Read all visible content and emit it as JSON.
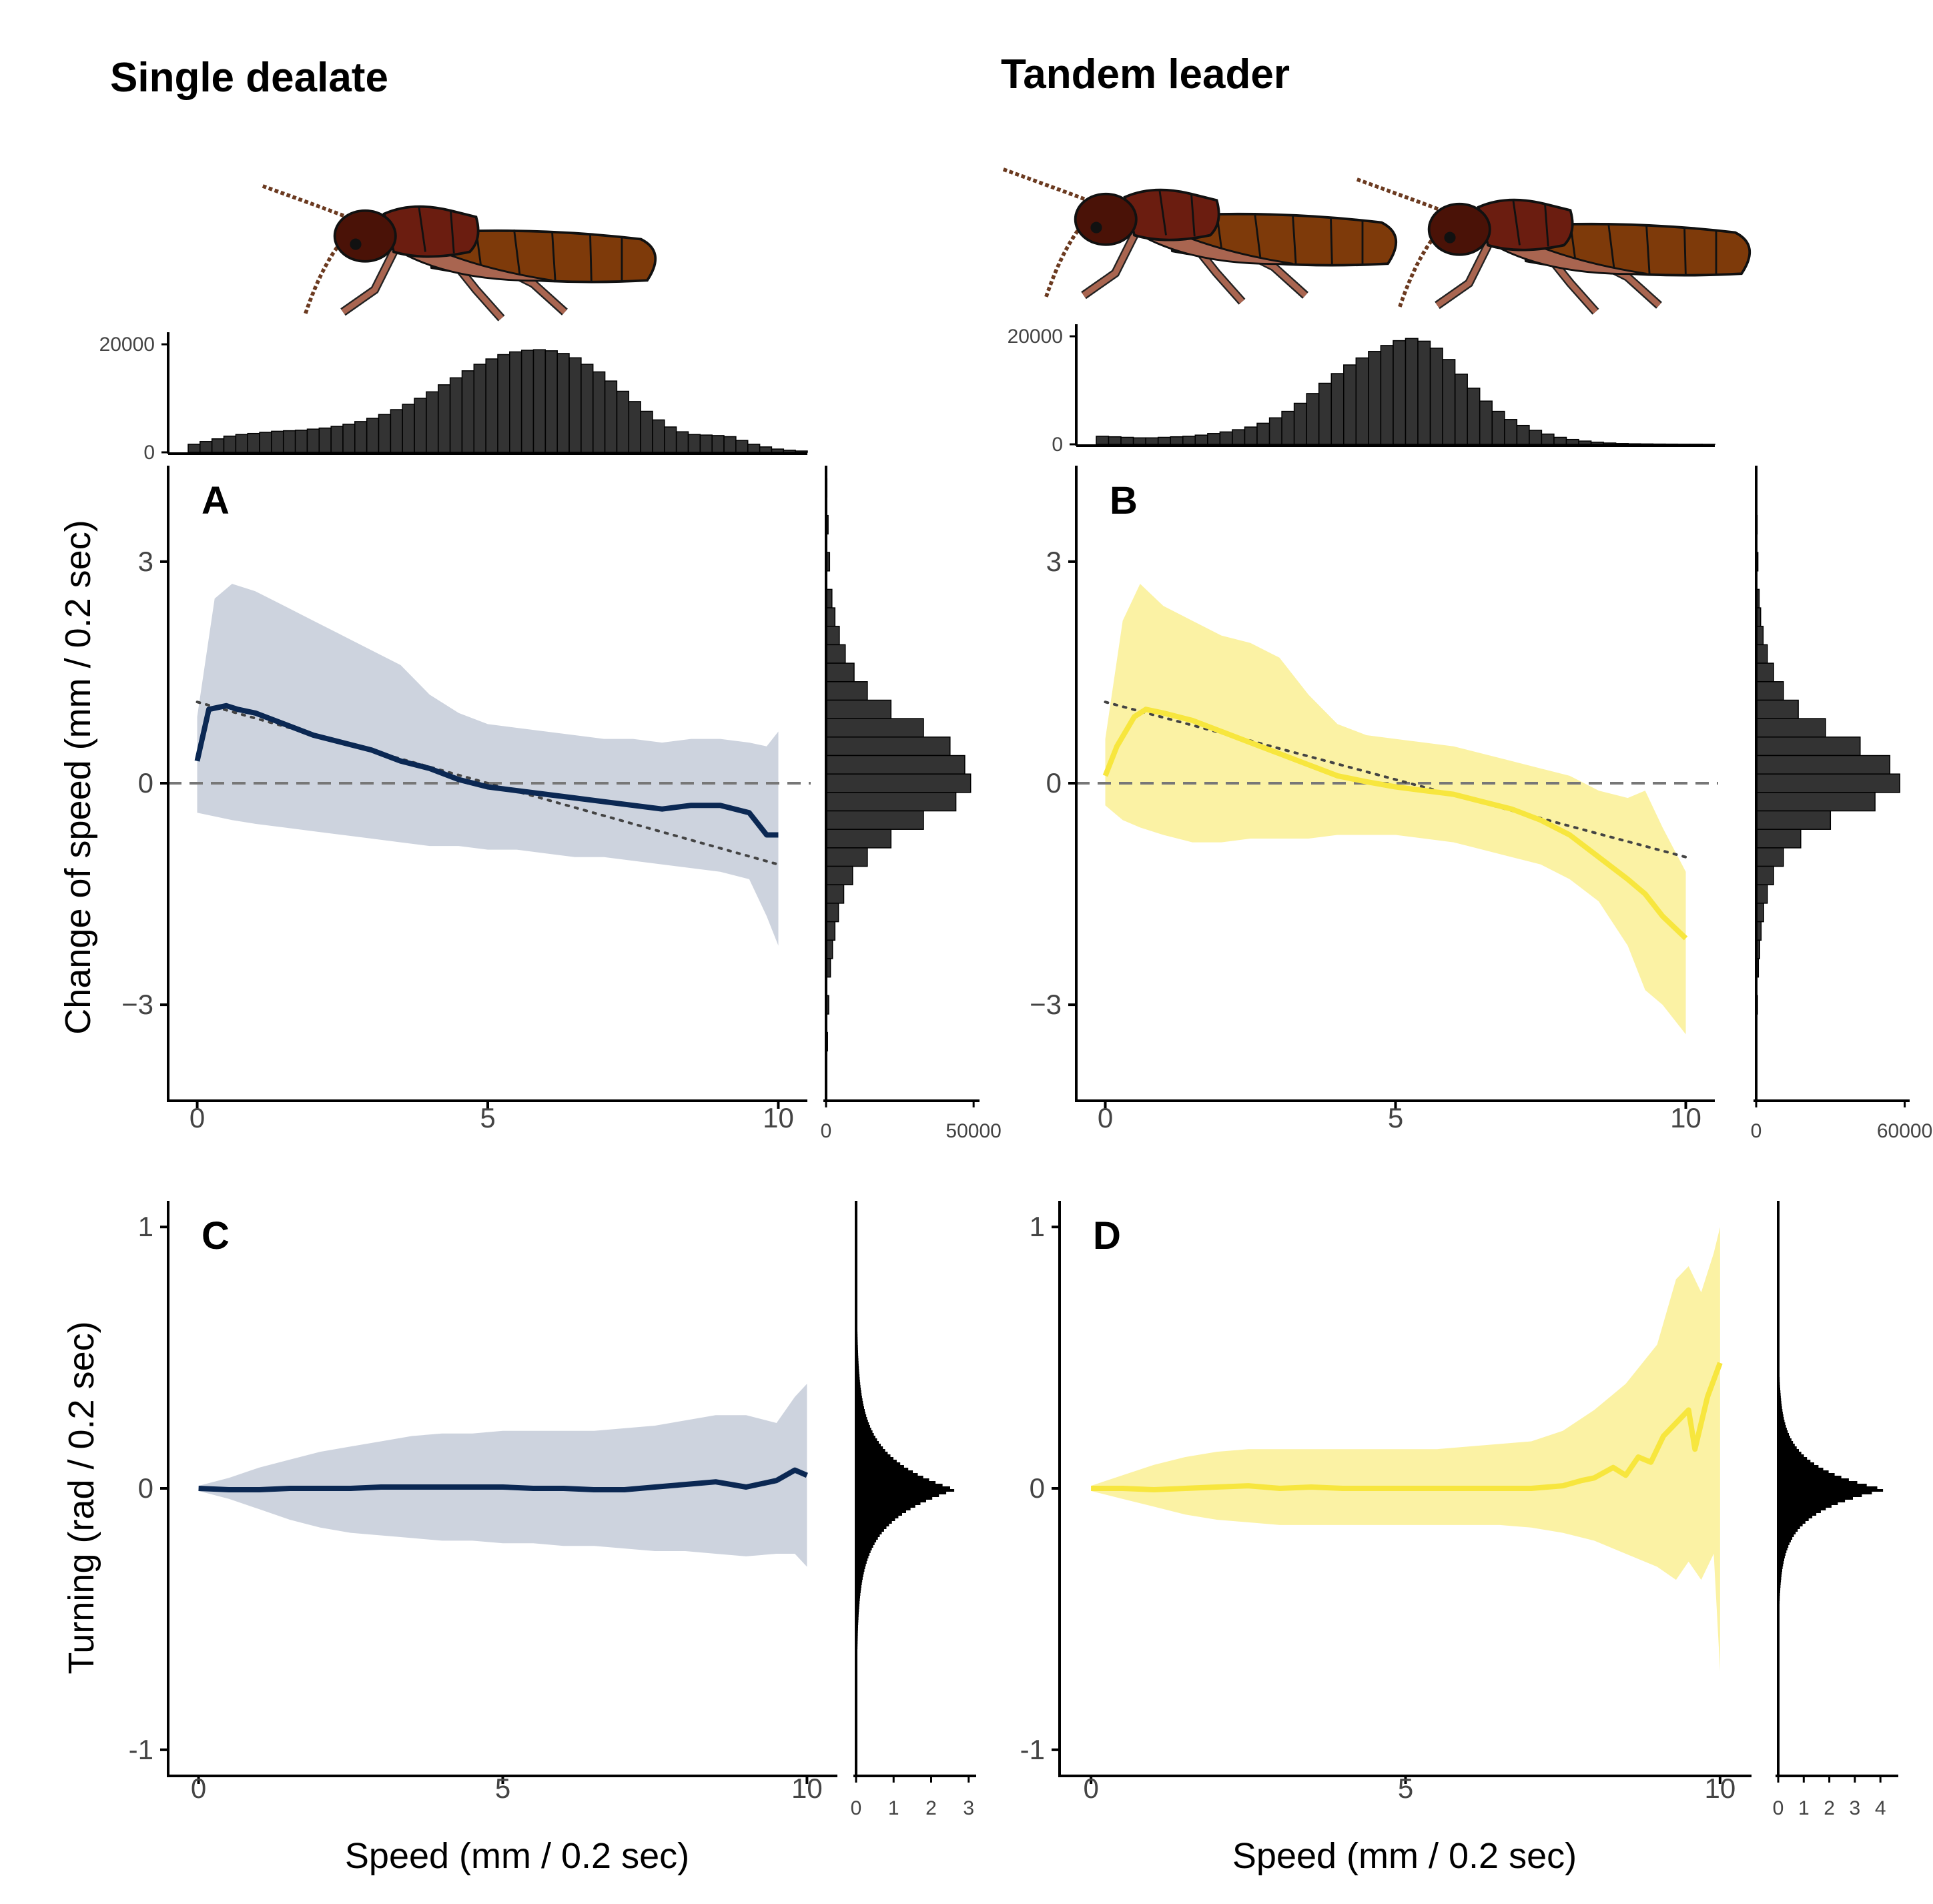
{
  "columns": [
    {
      "title": "Single dealate"
    },
    {
      "title": "Tandem leader"
    }
  ],
  "axis_labels": {
    "change_of_speed": "Change of speed (mm / 0.2 sec)",
    "turning": "Turning (rad / 0.2 sec)",
    "speed": "Speed (mm / 0.2 sec)"
  },
  "colors": {
    "single_line": "#0b2853",
    "single_band": "#cdd3de",
    "tandem_line": "#f7e63e",
    "tandem_band": "#fbf2a4",
    "histogram_fill": "#333333",
    "reference_line": "#777777",
    "linear_fit": "#444444",
    "termite_head": "#4a1207",
    "termite_thorax": "#6b1d10",
    "termite_abdomen": "#7e3a0a",
    "termite_legs": "#a96550"
  },
  "illustrations": [
    {
      "name": "termite-single",
      "icon": "termite-icon"
    },
    {
      "name": "termite-tandem-pair",
      "icon": "termite-pair-icon"
    }
  ],
  "chart_data": [
    {
      "type": "line",
      "panel_label": "A",
      "xlabel": "",
      "ylabel": "Change of speed (mm / 0.2 sec)",
      "xlim": [
        -0.5,
        10.5
      ],
      "ylim": [
        -4.3,
        4.3
      ],
      "xticks": [
        "0",
        "5",
        "10"
      ],
      "yticks": [
        "−3",
        "0",
        "3"
      ],
      "reference_line_y": 0,
      "mean": {
        "x": [
          0,
          0.2,
          0.5,
          0.7,
          1,
          1.5,
          2,
          2.5,
          3,
          3.5,
          4,
          4.5,
          5,
          5.5,
          6,
          6.5,
          7,
          7.5,
          8,
          8.5,
          9,
          9.5,
          9.8,
          10
        ],
        "y": [
          0.3,
          1.0,
          1.05,
          1.0,
          0.95,
          0.8,
          0.65,
          0.55,
          0.45,
          0.3,
          0.2,
          0.05,
          -0.05,
          -0.1,
          -0.15,
          -0.2,
          -0.25,
          -0.3,
          -0.35,
          -0.3,
          -0.3,
          -0.4,
          -0.7,
          -0.7
        ]
      },
      "band": {
        "x": [
          0,
          0.3,
          0.6,
          1,
          1.5,
          2,
          2.5,
          3,
          3.5,
          4,
          4.5,
          5,
          5.5,
          6,
          6.5,
          7,
          7.5,
          8,
          8.5,
          9,
          9.5,
          9.8,
          10
        ],
        "upper": [
          0.9,
          2.5,
          2.7,
          2.6,
          2.4,
          2.2,
          2.0,
          1.8,
          1.6,
          1.2,
          0.95,
          0.8,
          0.75,
          0.7,
          0.65,
          0.6,
          0.6,
          0.55,
          0.6,
          0.6,
          0.55,
          0.5,
          0.7
        ],
        "lower": [
          -0.4,
          -0.45,
          -0.5,
          -0.55,
          -0.6,
          -0.65,
          -0.7,
          -0.75,
          -0.8,
          -0.85,
          -0.85,
          -0.9,
          -0.9,
          -0.95,
          -1.0,
          -1.0,
          -1.05,
          -1.1,
          -1.15,
          -1.2,
          -1.3,
          -1.8,
          -2.2
        ]
      },
      "linear_fit": {
        "x": [
          0,
          10
        ],
        "y": [
          1.1,
          -1.1
        ]
      },
      "top_histogram": {
        "tick_labels": [
          "0",
          "20000"
        ],
        "max": 21000,
        "counts": [
          1500,
          2000,
          2500,
          3000,
          3300,
          3500,
          3700,
          3900,
          4000,
          4100,
          4300,
          4500,
          4800,
          5200,
          5700,
          6300,
          7000,
          7900,
          8900,
          10000,
          11200,
          12500,
          13800,
          15100,
          16300,
          17300,
          18100,
          18600,
          18900,
          19000,
          18800,
          18300,
          17500,
          16300,
          14900,
          13200,
          11300,
          9400,
          7600,
          6000,
          4700,
          3800,
          3300,
          3200,
          3100,
          2900,
          2200,
          1500,
          1000,
          600,
          400,
          250
        ]
      },
      "side_histogram": {
        "tick_labels": [
          "0",
          "50000"
        ],
        "max": 52000,
        "bin_centers": [
          4.0,
          3.5,
          3.0,
          2.5,
          2.25,
          2.0,
          1.75,
          1.5,
          1.25,
          1.0,
          0.75,
          0.5,
          0.25,
          0.0,
          -0.25,
          -0.5,
          -0.75,
          -1.0,
          -1.25,
          -1.5,
          -1.75,
          -2.0,
          -2.25,
          -2.5,
          -3.0,
          -3.5,
          -4.0
        ],
        "counts": [
          300,
          700,
          1200,
          2000,
          3000,
          4500,
          6500,
          9500,
          14000,
          22000,
          33000,
          42000,
          47000,
          49000,
          44000,
          33000,
          22000,
          14000,
          9000,
          6000,
          4200,
          3000,
          2200,
          1500,
          900,
          500,
          250
        ]
      }
    },
    {
      "type": "line",
      "panel_label": "B",
      "xlabel": "",
      "ylabel": "",
      "xlim": [
        -0.5,
        10.5
      ],
      "ylim": [
        -4.3,
        4.3
      ],
      "xticks": [
        "0",
        "5",
        "10"
      ],
      "yticks": [
        "−3",
        "0",
        "3"
      ],
      "reference_line_y": 0,
      "mean": {
        "x": [
          0,
          0.2,
          0.5,
          0.7,
          1,
          1.5,
          2,
          2.5,
          3,
          3.5,
          4,
          4.5,
          5,
          5.5,
          6,
          6.5,
          7,
          7.5,
          8,
          8.5,
          9,
          9.3,
          9.6,
          10
        ],
        "y": [
          0.1,
          0.5,
          0.9,
          1.0,
          0.95,
          0.85,
          0.7,
          0.55,
          0.4,
          0.25,
          0.1,
          0.02,
          -0.05,
          -0.1,
          -0.15,
          -0.25,
          -0.35,
          -0.5,
          -0.7,
          -1.0,
          -1.3,
          -1.5,
          -1.8,
          -2.1
        ]
      },
      "band": {
        "x": [
          0,
          0.3,
          0.6,
          1,
          1.5,
          2,
          2.5,
          3,
          3.5,
          4,
          4.5,
          5,
          5.5,
          6,
          6.5,
          7,
          7.5,
          8,
          8.5,
          9,
          9.3,
          9.6,
          10
        ],
        "upper": [
          0.6,
          2.2,
          2.7,
          2.4,
          2.2,
          2.0,
          1.9,
          1.7,
          1.2,
          0.8,
          0.65,
          0.6,
          0.55,
          0.5,
          0.4,
          0.3,
          0.2,
          0.1,
          -0.1,
          -0.2,
          -0.1,
          -0.6,
          -1.2
        ],
        "lower": [
          -0.3,
          -0.5,
          -0.6,
          -0.7,
          -0.8,
          -0.8,
          -0.75,
          -0.75,
          -0.75,
          -0.7,
          -0.7,
          -0.7,
          -0.75,
          -0.8,
          -0.9,
          -1.0,
          -1.1,
          -1.3,
          -1.6,
          -2.2,
          -2.8,
          -3.0,
          -3.4
        ]
      },
      "linear_fit": {
        "x": [
          0,
          10
        ],
        "y": [
          1.1,
          -1.0
        ]
      },
      "top_histogram": {
        "tick_labels": [
          "0",
          "20000"
        ],
        "max": 21000,
        "counts": [
          1500,
          1400,
          1300,
          1200,
          1200,
          1300,
          1400,
          1500,
          1700,
          2000,
          2300,
          2700,
          3200,
          3900,
          4900,
          6100,
          7600,
          9400,
          11300,
          13100,
          14700,
          16000,
          17200,
          18300,
          19200,
          19600,
          19100,
          17800,
          15700,
          13000,
          10400,
          8000,
          6100,
          4600,
          3500,
          2600,
          1900,
          1300,
          900,
          600,
          400,
          250,
          150,
          100,
          70,
          50,
          40,
          30,
          20,
          15
        ]
      },
      "side_histogram": {
        "tick_labels": [
          "0",
          "60000"
        ],
        "max": 62000,
        "bin_centers": [
          4.0,
          3.5,
          3.0,
          2.5,
          2.25,
          2.0,
          1.75,
          1.5,
          1.25,
          1.0,
          0.75,
          0.5,
          0.25,
          0.0,
          -0.25,
          -0.5,
          -0.75,
          -1.0,
          -1.25,
          -1.5,
          -1.75,
          -2.0,
          -2.25,
          -2.5,
          -3.0,
          -3.5,
          -4.0
        ],
        "counts": [
          200,
          400,
          700,
          1200,
          1800,
          2800,
          4500,
          7000,
          11000,
          17000,
          28000,
          42000,
          54000,
          58000,
          48000,
          30000,
          18000,
          11000,
          7000,
          4500,
          3000,
          2000,
          1400,
          900,
          500,
          300,
          150
        ]
      }
    },
    {
      "type": "line",
      "panel_label": "C",
      "xlabel": "Speed (mm / 0.2 sec)",
      "ylabel": "Turning (rad / 0.2 sec)",
      "xlim": [
        -0.5,
        10.5
      ],
      "ylim": [
        -1.1,
        1.1
      ],
      "xticks": [
        "0",
        "5",
        "10"
      ],
      "yticks": [
        "-1",
        "0",
        "1"
      ],
      "mean": {
        "x": [
          0,
          0.5,
          1,
          1.5,
          2,
          2.5,
          3,
          3.5,
          4,
          4.5,
          5,
          5.5,
          6,
          6.5,
          7,
          7.5,
          8,
          8.5,
          9,
          9.5,
          9.8,
          10
        ],
        "y": [
          0.0,
          -0.005,
          -0.005,
          0.0,
          0.0,
          0.0,
          0.005,
          0.005,
          0.005,
          0.005,
          0.005,
          0.0,
          0.0,
          -0.005,
          -0.005,
          0.005,
          0.015,
          0.025,
          0.005,
          0.03,
          0.07,
          0.05
        ]
      },
      "band": {
        "x": [
          0,
          0.5,
          1,
          1.5,
          2,
          2.5,
          3,
          3.5,
          4,
          4.5,
          5,
          5.5,
          6,
          6.5,
          7,
          7.5,
          8,
          8.5,
          9,
          9.5,
          9.8,
          10
        ],
        "upper": [
          0.01,
          0.04,
          0.08,
          0.11,
          0.14,
          0.16,
          0.18,
          0.2,
          0.21,
          0.21,
          0.22,
          0.22,
          0.22,
          0.22,
          0.23,
          0.24,
          0.26,
          0.28,
          0.28,
          0.25,
          0.35,
          0.4
        ],
        "lower": [
          -0.01,
          -0.04,
          -0.08,
          -0.12,
          -0.15,
          -0.17,
          -0.18,
          -0.19,
          -0.2,
          -0.2,
          -0.21,
          -0.21,
          -0.22,
          -0.22,
          -0.23,
          -0.24,
          -0.24,
          -0.25,
          -0.26,
          -0.25,
          -0.25,
          -0.3
        ]
      },
      "side_histogram": {
        "tick_labels": [
          "0",
          "1",
          "2",
          "3"
        ],
        "max": 3.2,
        "peak": 2.65,
        "decay": 0.12
      }
    },
    {
      "type": "line",
      "panel_label": "D",
      "xlabel": "Speed (mm / 0.2 sec)",
      "ylabel": "",
      "xlim": [
        -0.5,
        10.5
      ],
      "ylim": [
        -1.1,
        1.1
      ],
      "xticks": [
        "0",
        "5",
        "10"
      ],
      "yticks": [
        "-1",
        "0",
        "1"
      ],
      "mean": {
        "x": [
          0,
          0.5,
          1,
          1.5,
          2,
          2.5,
          3,
          3.5,
          4,
          4.5,
          5,
          5.5,
          6,
          6.5,
          7,
          7.5,
          7.8,
          8,
          8.3,
          8.5,
          8.7,
          8.9,
          9.1,
          9.3,
          9.5,
          9.6,
          9.8,
          10
        ],
        "y": [
          0.0,
          0.0,
          -0.005,
          0.0,
          0.005,
          0.01,
          0.0,
          0.005,
          0.0,
          0.0,
          0.0,
          0.0,
          0.0,
          0.0,
          0.0,
          0.01,
          0.03,
          0.04,
          0.08,
          0.05,
          0.12,
          0.1,
          0.2,
          0.25,
          0.3,
          0.15,
          0.35,
          0.48
        ]
      },
      "band": {
        "x": [
          0,
          0.5,
          1,
          1.5,
          2,
          2.5,
          3,
          3.5,
          4,
          4.5,
          5,
          5.5,
          6,
          6.5,
          7,
          7.5,
          8,
          8.5,
          9,
          9.3,
          9.5,
          9.7,
          9.9,
          10
        ],
        "upper": [
          0.01,
          0.05,
          0.09,
          0.12,
          0.14,
          0.15,
          0.15,
          0.15,
          0.15,
          0.15,
          0.15,
          0.15,
          0.16,
          0.17,
          0.18,
          0.22,
          0.3,
          0.4,
          0.55,
          0.8,
          0.85,
          0.75,
          0.9,
          1.0
        ],
        "lower": [
          -0.01,
          -0.04,
          -0.07,
          -0.1,
          -0.12,
          -0.13,
          -0.14,
          -0.14,
          -0.14,
          -0.14,
          -0.14,
          -0.14,
          -0.14,
          -0.14,
          -0.15,
          -0.17,
          -0.2,
          -0.25,
          -0.3,
          -0.35,
          -0.28,
          -0.35,
          -0.25,
          -0.7
        ]
      },
      "side_histogram": {
        "tick_labels": [
          "0",
          "1",
          "2",
          "3",
          "4"
        ],
        "max": 4.7,
        "peak": 4.2,
        "decay": 0.09
      }
    }
  ]
}
